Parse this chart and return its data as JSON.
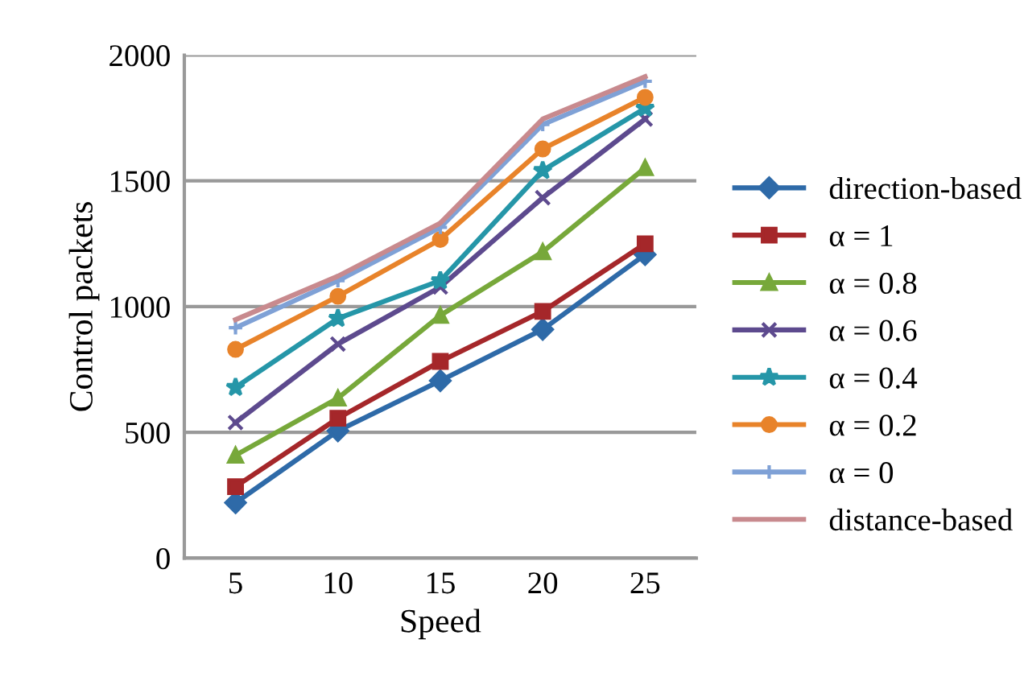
{
  "chart_data": {
    "type": "line",
    "xlabel": "Speed",
    "ylabel": "Control packets",
    "x": [
      5,
      10,
      15,
      20,
      25
    ],
    "xlim": [
      2.5,
      27.5
    ],
    "xticks": [
      5,
      10,
      15,
      20,
      25
    ],
    "ylim": [
      0,
      2000
    ],
    "yticks": [
      0,
      500,
      1000,
      1500,
      2000
    ],
    "grid": "y",
    "legend": "right",
    "series": [
      {
        "name": "direction-based",
        "color": "#2e6aa8",
        "marker": "diamond",
        "values": [
          220,
          506,
          705,
          909,
          1207
        ]
      },
      {
        "name": "α = 1",
        "color": "#a5272a",
        "marker": "square",
        "values": [
          284,
          556,
          782,
          981,
          1250
        ]
      },
      {
        "name": "α = 0.8",
        "color": "#77a83a",
        "marker": "triangle",
        "values": [
          409,
          636,
          965,
          1218,
          1552
        ]
      },
      {
        "name": "α = 0.6",
        "color": "#5d4a8e",
        "marker": "cross",
        "values": [
          539,
          851,
          1078,
          1433,
          1746
        ]
      },
      {
        "name": "α = 0.4",
        "color": "#2596a8",
        "marker": "star",
        "values": [
          679,
          953,
          1103,
          1541,
          1789
        ]
      },
      {
        "name": "α = 0.2",
        "color": "#e8832a",
        "marker": "circle",
        "values": [
          830,
          1041,
          1267,
          1627,
          1832
        ]
      },
      {
        "name": "α = 0",
        "color": "#7fa1d6",
        "marker": "plus",
        "values": [
          916,
          1103,
          1315,
          1724,
          1896
        ]
      },
      {
        "name": "distance-based",
        "color": "#c88a8e",
        "marker": "none",
        "values": [
          948,
          1121,
          1332,
          1746,
          1914
        ]
      }
    ]
  }
}
